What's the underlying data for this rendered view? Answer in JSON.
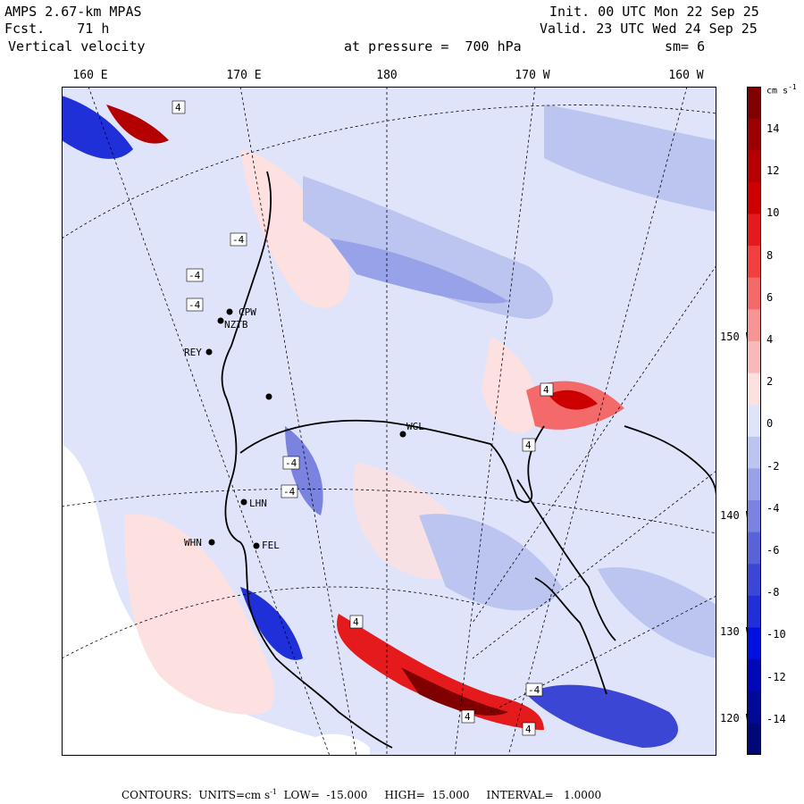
{
  "header": {
    "model": "AMPS 2.67-km MPAS",
    "fcst_label": "Fcst.",
    "fcst_value": "71 h",
    "field": "Vertical velocity",
    "init": "Init. 00 UTC Mon 22 Sep 25",
    "valid": "Valid. 23 UTC Wed 24 Sep 25",
    "pressure": "at pressure =  700 hPa",
    "smooth": "sm= 6"
  },
  "longitude_labels": [
    "160 E",
    "170 E",
    "180",
    "170 W",
    "160 W"
  ],
  "latitude_labels": [
    "150 W",
    "140 W",
    "130 W",
    "120 W"
  ],
  "stations": [
    "CPW",
    "NZTB",
    "REY",
    "WGL",
    "LHN",
    "WHN",
    "FEL"
  ],
  "contour_labels": [
    "-4",
    "4"
  ],
  "colorbar": {
    "units": "cm s",
    "units_exp": "-1",
    "ticks": [
      "14",
      "12",
      "10",
      "8",
      "6",
      "4",
      "2",
      "0",
      "-2",
      "-4",
      "-6",
      "-8",
      "-10",
      "-12",
      "-14"
    ],
    "colors": [
      "#800000",
      "#9a0000",
      "#b40000",
      "#cc0000",
      "#e41a1c",
      "#f04040",
      "#f46a6a",
      "#f79494",
      "#f9b9b9",
      "#fde0e0",
      "#e0e4fa",
      "#bcc4f0",
      "#98a2e8",
      "#7a84e0",
      "#5a62d8",
      "#3c46d4",
      "#2030d8",
      "#0010e0",
      "#0008b8",
      "#000a96",
      "#000878"
    ]
  },
  "footer": {
    "contours": "CONTOURS:",
    "units": "UNITS=cm s",
    "units_exp": "-1",
    "low": "LOW=  -15.000",
    "high": "HIGH=  15.000",
    "interval": "INTERVAL=   1.0000"
  }
}
